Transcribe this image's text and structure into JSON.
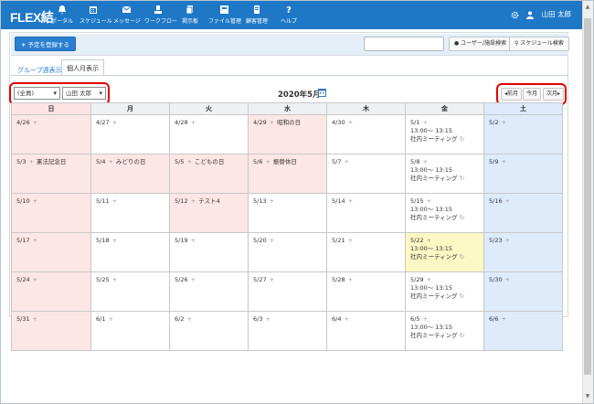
{
  "app": {
    "logo": "FLEX結"
  },
  "nav": [
    {
      "label": "ポータル",
      "icon": "bell-icon"
    },
    {
      "label": "スケジュール",
      "icon": "calendar-icon"
    },
    {
      "label": "メッセージ",
      "icon": "mail-icon"
    },
    {
      "label": "ワークフロー",
      "icon": "workflow-icon"
    },
    {
      "label": "掲示板",
      "icon": "board-icon"
    },
    {
      "label": "ファイル管理",
      "icon": "file-icon"
    },
    {
      "label": "顧客管理",
      "icon": "customer-icon"
    },
    {
      "label": "ヘルプ",
      "icon": "help-icon"
    }
  ],
  "user": {
    "name": "山田 太郎",
    "settings_icon": "gear-icon"
  },
  "toolbar": {
    "register_label": "予定を登録する",
    "search_value": "",
    "user_search_label": "ユーザー/施設検索",
    "schedule_search_label": "スケジュール検索"
  },
  "tabs": {
    "group_weekly": "グループ週表示",
    "personal_monthly": "個人月表示"
  },
  "filters": {
    "group_selected": "(全員)",
    "user_selected": "山田 太郎"
  },
  "calendar": {
    "title": "2020年5月",
    "prev_label": "前月",
    "today_label": "今月",
    "next_label": "次月",
    "weekdays": [
      "日",
      "月",
      "火",
      "水",
      "木",
      "金",
      "土"
    ],
    "weeks": [
      [
        {
          "date": "4/26",
          "kind": "sun",
          "events": []
        },
        {
          "date": "4/27",
          "kind": "normal",
          "events": []
        },
        {
          "date": "4/28",
          "kind": "normal",
          "events": []
        },
        {
          "date": "4/29",
          "kind": "hol",
          "holiday": "昭和の日",
          "events": []
        },
        {
          "date": "4/30",
          "kind": "normal",
          "events": []
        },
        {
          "date": "5/1",
          "kind": "normal",
          "events": [
            {
              "time": "13:00～ 13:15",
              "title": "社内ミーティング"
            }
          ]
        },
        {
          "date": "5/2",
          "kind": "sat",
          "events": []
        }
      ],
      [
        {
          "date": "5/3",
          "kind": "sun",
          "holiday": "憲法記念日",
          "events": []
        },
        {
          "date": "5/4",
          "kind": "hol",
          "holiday": "みどりの日",
          "events": []
        },
        {
          "date": "5/5",
          "kind": "hol",
          "holiday": "こどもの日",
          "events": []
        },
        {
          "date": "5/6",
          "kind": "hol",
          "holiday": "振替休日",
          "events": []
        },
        {
          "date": "5/7",
          "kind": "normal",
          "events": []
        },
        {
          "date": "5/8",
          "kind": "normal",
          "events": [
            {
              "time": "13:00～ 13:15",
              "title": "社内ミーティング"
            }
          ]
        },
        {
          "date": "5/9",
          "kind": "sat",
          "events": []
        }
      ],
      [
        {
          "date": "5/10",
          "kind": "sun",
          "events": []
        },
        {
          "date": "5/11",
          "kind": "normal",
          "events": []
        },
        {
          "date": "5/12",
          "kind": "hol",
          "holiday": "テスト4",
          "events": []
        },
        {
          "date": "5/13",
          "kind": "normal",
          "events": []
        },
        {
          "date": "5/14",
          "kind": "normal",
          "events": []
        },
        {
          "date": "5/15",
          "kind": "normal",
          "events": [
            {
              "time": "13:00～ 13:15",
              "title": "社内ミーティング"
            }
          ]
        },
        {
          "date": "5/16",
          "kind": "sat",
          "events": []
        }
      ],
      [
        {
          "date": "5/17",
          "kind": "sun",
          "events": []
        },
        {
          "date": "5/18",
          "kind": "normal",
          "events": []
        },
        {
          "date": "5/19",
          "kind": "normal",
          "events": []
        },
        {
          "date": "5/20",
          "kind": "normal",
          "events": []
        },
        {
          "date": "5/21",
          "kind": "normal",
          "events": []
        },
        {
          "date": "5/22",
          "kind": "today",
          "events": [
            {
              "time": "13:00～ 13:15",
              "title": "社内ミーティング"
            }
          ]
        },
        {
          "date": "5/23",
          "kind": "sat",
          "events": []
        }
      ],
      [
        {
          "date": "5/24",
          "kind": "sun",
          "events": []
        },
        {
          "date": "5/25",
          "kind": "normal",
          "events": []
        },
        {
          "date": "5/26",
          "kind": "normal",
          "events": []
        },
        {
          "date": "5/27",
          "kind": "normal",
          "events": []
        },
        {
          "date": "5/28",
          "kind": "normal",
          "events": []
        },
        {
          "date": "5/29",
          "kind": "normal",
          "events": [
            {
              "time": "13:00～ 13:15",
              "title": "社内ミーティング"
            }
          ]
        },
        {
          "date": "5/30",
          "kind": "sat",
          "events": []
        }
      ],
      [
        {
          "date": "5/31",
          "kind": "sun",
          "events": []
        },
        {
          "date": "6/1",
          "kind": "normal",
          "events": []
        },
        {
          "date": "6/2",
          "kind": "normal",
          "events": []
        },
        {
          "date": "6/3",
          "kind": "normal",
          "events": []
        },
        {
          "date": "6/4",
          "kind": "normal",
          "events": []
        },
        {
          "date": "6/5",
          "kind": "normal",
          "events": [
            {
              "time": "13:00～ 13:15",
              "title": "社内ミーティング"
            }
          ]
        },
        {
          "date": "6/6",
          "kind": "sat",
          "events": []
        }
      ]
    ]
  }
}
